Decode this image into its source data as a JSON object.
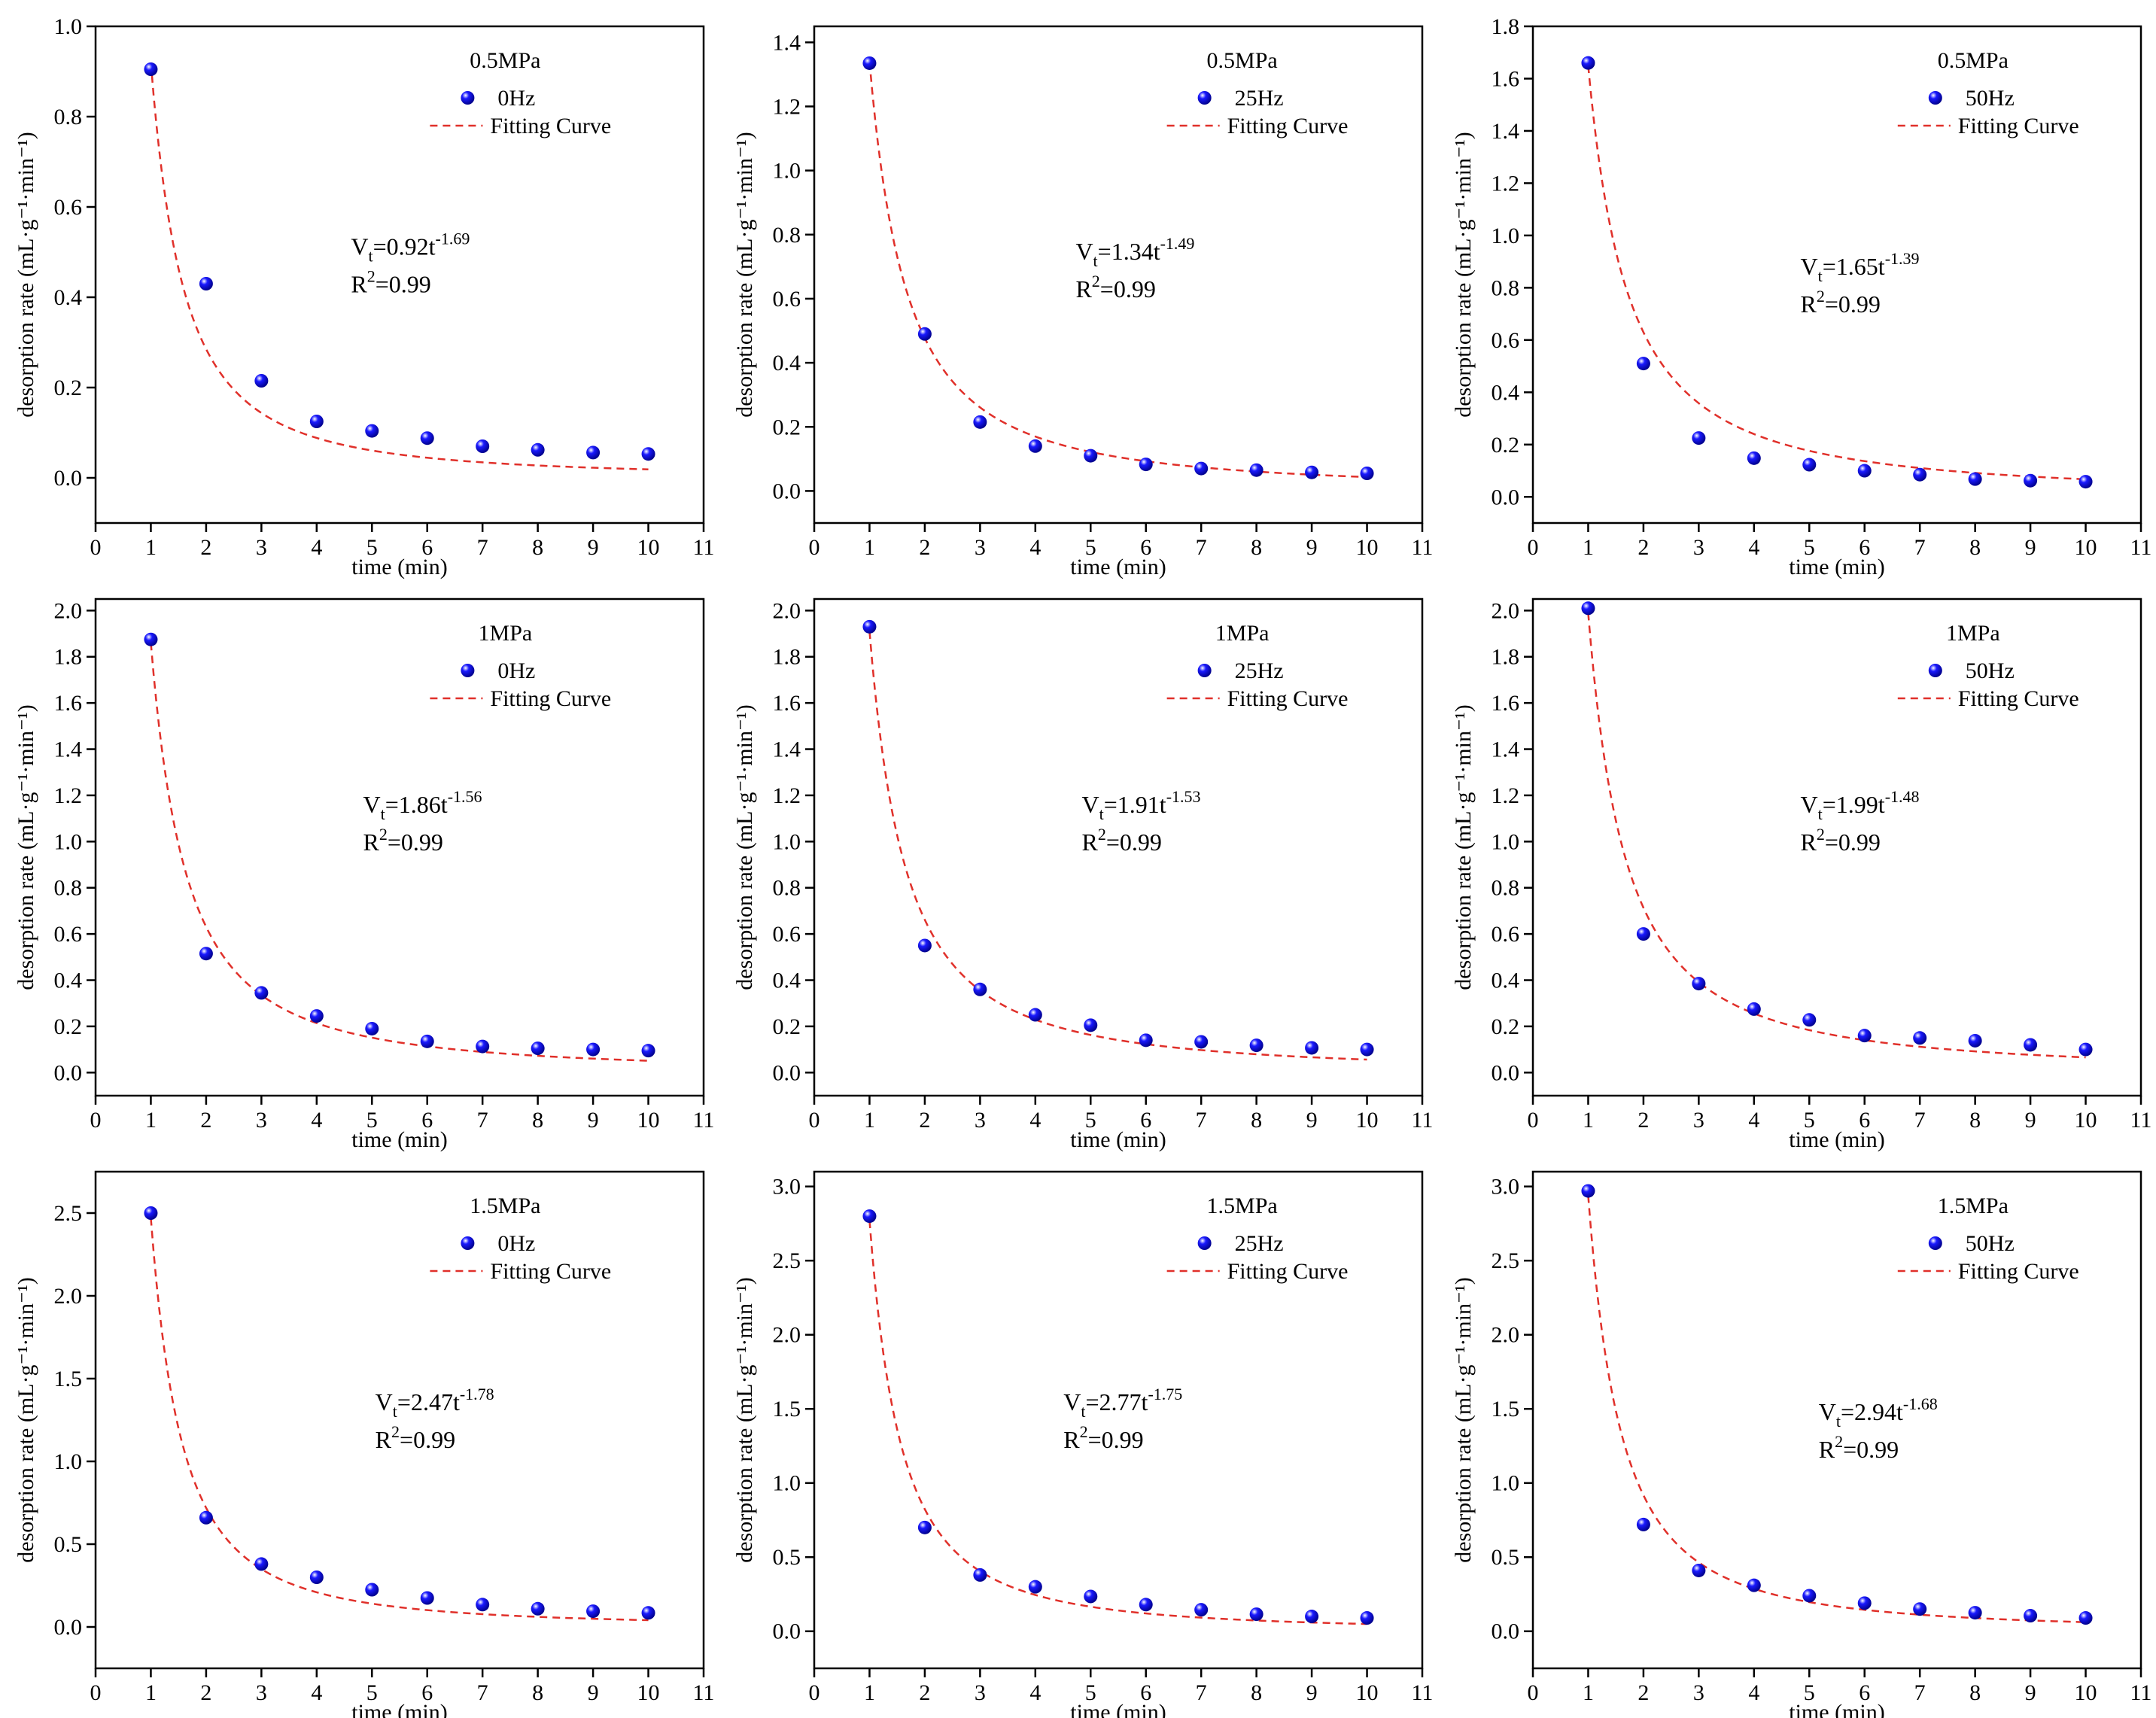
{
  "chart_data": [
    {
      "type": "scatter",
      "xlabel": "time (min)",
      "ylabel": "desorption rate (mL·g⁻¹·min⁻¹)",
      "xlim": [
        0,
        11
      ],
      "ylim": [
        -0.1,
        1.0
      ],
      "xticks": [
        0,
        1,
        2,
        3,
        4,
        5,
        6,
        7,
        8,
        9,
        10,
        11
      ],
      "yticks": [
        0.0,
        0.2,
        0.4,
        0.6,
        0.8,
        1.0
      ],
      "yticklabels": [
        "0.0",
        "0.2",
        "0.4",
        "0.6",
        "0.8",
        "1.0"
      ],
      "legend": {
        "position": "top-right",
        "title": "0.5MPa",
        "series_label": "0Hz",
        "fit_label": "Fitting Curve"
      },
      "series": [
        {
          "name": "0Hz",
          "x": [
            1,
            2,
            3,
            4,
            5,
            6,
            7,
            8,
            9,
            10
          ],
          "y": [
            0.905,
            0.43,
            0.215,
            0.125,
            0.104,
            0.088,
            0.07,
            0.062,
            0.056,
            0.053
          ]
        }
      ],
      "fit": {
        "a": 0.92,
        "b": 1.69
      },
      "equation": {
        "prefix": "V",
        "sub": "t",
        "mid": "=0.92t",
        "exp": "-1.69"
      },
      "r2": {
        "prefix": "R",
        "sup": "2",
        "suffix": "=0.99"
      },
      "grid": false
    },
    {
      "type": "scatter",
      "xlabel": "time (min)",
      "ylabel": "desorption rate (mL·g⁻¹·min⁻¹)",
      "xlim": [
        0,
        11
      ],
      "ylim": [
        -0.1,
        1.45
      ],
      "xticks": [
        0,
        1,
        2,
        3,
        4,
        5,
        6,
        7,
        8,
        9,
        10,
        11
      ],
      "yticks": [
        0.0,
        0.2,
        0.4,
        0.6,
        0.8,
        1.0,
        1.2,
        1.4
      ],
      "yticklabels": [
        "0.0",
        "0.2",
        "0.4",
        "0.6",
        "0.8",
        "1.0",
        "1.2",
        "1.4"
      ],
      "legend": {
        "position": "top-right",
        "title": "0.5MPa",
        "series_label": "25Hz",
        "fit_label": "Fitting Curve"
      },
      "series": [
        {
          "name": "25Hz",
          "x": [
            1,
            2,
            3,
            4,
            5,
            6,
            7,
            8,
            9,
            10
          ],
          "y": [
            1.335,
            0.49,
            0.215,
            0.14,
            0.11,
            0.083,
            0.07,
            0.065,
            0.058,
            0.055
          ]
        }
      ],
      "fit": {
        "a": 1.34,
        "b": 1.49
      },
      "equation": {
        "prefix": "V",
        "sub": "t",
        "mid": "=1.34t",
        "exp": "-1.49"
      },
      "r2": {
        "prefix": "R",
        "sup": "2",
        "suffix": "=0.99"
      },
      "grid": false
    },
    {
      "type": "scatter",
      "xlabel": "time (min)",
      "ylabel": "desorption rate (mL·g⁻¹·min⁻¹)",
      "xlim": [
        0,
        11
      ],
      "ylim": [
        -0.1,
        1.8
      ],
      "xticks": [
        0,
        1,
        2,
        3,
        4,
        5,
        6,
        7,
        8,
        9,
        10,
        11
      ],
      "yticks": [
        0.0,
        0.2,
        0.4,
        0.6,
        0.8,
        1.0,
        1.2,
        1.4,
        1.6,
        1.8
      ],
      "yticklabels": [
        "0.0",
        "0.2",
        "0.4",
        "0.6",
        "0.8",
        "1.0",
        "1.2",
        "1.4",
        "1.6",
        "1.8"
      ],
      "legend": {
        "position": "top-right",
        "title": "0.5MPa",
        "series_label": "50Hz",
        "fit_label": "Fitting Curve"
      },
      "series": [
        {
          "name": "50Hz",
          "x": [
            1,
            2,
            3,
            4,
            5,
            6,
            7,
            8,
            9,
            10
          ],
          "y": [
            1.66,
            0.51,
            0.225,
            0.148,
            0.123,
            0.1,
            0.085,
            0.068,
            0.062,
            0.058
          ]
        }
      ],
      "fit": {
        "a": 1.65,
        "b": 1.39
      },
      "equation": {
        "prefix": "V",
        "sub": "t",
        "mid": "=1.65t",
        "exp": "-1.39"
      },
      "r2": {
        "prefix": "R",
        "sup": "2",
        "suffix": "=0.99"
      },
      "grid": false
    },
    {
      "type": "scatter",
      "xlabel": "time (min)",
      "ylabel": "desorption rate (mL·g⁻¹·min⁻¹)",
      "xlim": [
        0,
        11
      ],
      "ylim": [
        -0.1,
        2.05
      ],
      "xticks": [
        0,
        1,
        2,
        3,
        4,
        5,
        6,
        7,
        8,
        9,
        10,
        11
      ],
      "yticks": [
        0.0,
        0.2,
        0.4,
        0.6,
        0.8,
        1.0,
        1.2,
        1.4,
        1.6,
        1.8,
        2.0
      ],
      "yticklabels": [
        "0.0",
        "0.2",
        "0.4",
        "0.6",
        "0.8",
        "1.0",
        "1.2",
        "1.4",
        "1.6",
        "1.8",
        "2.0"
      ],
      "legend": {
        "position": "top-right",
        "title": "1MPa",
        "series_label": "0Hz",
        "fit_label": "Fitting Curve"
      },
      "series": [
        {
          "name": "0Hz",
          "x": [
            1,
            2,
            3,
            4,
            5,
            6,
            7,
            8,
            9,
            10
          ],
          "y": [
            1.875,
            0.515,
            0.345,
            0.245,
            0.19,
            0.135,
            0.113,
            0.105,
            0.1,
            0.095
          ]
        }
      ],
      "fit": {
        "a": 1.86,
        "b": 1.56
      },
      "equation": {
        "prefix": "V",
        "sub": "t",
        "mid": "=1.86t",
        "exp": "-1.56"
      },
      "r2": {
        "prefix": "R",
        "sup": "2",
        "suffix": "=0.99"
      },
      "grid": false
    },
    {
      "type": "scatter",
      "xlabel": "time (min)",
      "ylabel": "desorption rate (mL·g⁻¹·min⁻¹)",
      "xlim": [
        0,
        11
      ],
      "ylim": [
        -0.1,
        2.05
      ],
      "xticks": [
        0,
        1,
        2,
        3,
        4,
        5,
        6,
        7,
        8,
        9,
        10,
        11
      ],
      "yticks": [
        0.0,
        0.2,
        0.4,
        0.6,
        0.8,
        1.0,
        1.2,
        1.4,
        1.6,
        1.8,
        2.0
      ],
      "yticklabels": [
        "0.0",
        "0.2",
        "0.4",
        "0.6",
        "0.8",
        "1.0",
        "1.2",
        "1.4",
        "1.6",
        "1.8",
        "2.0"
      ],
      "legend": {
        "position": "top-right",
        "title": "1MPa",
        "series_label": "25Hz",
        "fit_label": "Fitting Curve"
      },
      "series": [
        {
          "name": "25Hz",
          "x": [
            1,
            2,
            3,
            4,
            5,
            6,
            7,
            8,
            9,
            10
          ],
          "y": [
            1.93,
            0.55,
            0.36,
            0.25,
            0.205,
            0.14,
            0.133,
            0.118,
            0.107,
            0.1
          ]
        }
      ],
      "fit": {
        "a": 1.91,
        "b": 1.53
      },
      "equation": {
        "prefix": "V",
        "sub": "t",
        "mid": "=1.91t",
        "exp": "-1.53"
      },
      "r2": {
        "prefix": "R",
        "sup": "2",
        "suffix": "=0.99"
      },
      "grid": false
    },
    {
      "type": "scatter",
      "xlabel": "time (min)",
      "ylabel": "desorption rate (mL·g⁻¹·min⁻¹)",
      "xlim": [
        0,
        11
      ],
      "ylim": [
        -0.1,
        2.05
      ],
      "xticks": [
        0,
        1,
        2,
        3,
        4,
        5,
        6,
        7,
        8,
        9,
        10,
        11
      ],
      "yticks": [
        0.0,
        0.2,
        0.4,
        0.6,
        0.8,
        1.0,
        1.2,
        1.4,
        1.6,
        1.8,
        2.0
      ],
      "yticklabels": [
        "0.0",
        "0.2",
        "0.4",
        "0.6",
        "0.8",
        "1.0",
        "1.2",
        "1.4",
        "1.6",
        "1.8",
        "2.0"
      ],
      "legend": {
        "position": "top-right",
        "title": "1MPa",
        "series_label": "50Hz",
        "fit_label": "Fitting Curve"
      },
      "series": [
        {
          "name": "50Hz",
          "x": [
            1,
            2,
            3,
            4,
            5,
            6,
            7,
            8,
            9,
            10
          ],
          "y": [
            2.01,
            0.6,
            0.385,
            0.275,
            0.228,
            0.16,
            0.15,
            0.138,
            0.12,
            0.1
          ]
        }
      ],
      "fit": {
        "a": 1.99,
        "b": 1.48
      },
      "equation": {
        "prefix": "V",
        "sub": "t",
        "mid": "=1.99t",
        "exp": "-1.48"
      },
      "r2": {
        "prefix": "R",
        "sup": "2",
        "suffix": "=0.99"
      },
      "grid": false
    },
    {
      "type": "scatter",
      "xlabel": "time (min)",
      "ylabel": "desorption rate (mL·g⁻¹·min⁻¹)",
      "xlim": [
        0,
        11
      ],
      "ylim": [
        -0.25,
        2.75
      ],
      "xticks": [
        0,
        1,
        2,
        3,
        4,
        5,
        6,
        7,
        8,
        9,
        10,
        11
      ],
      "yticks": [
        0.0,
        0.5,
        1.0,
        1.5,
        2.0,
        2.5
      ],
      "yticklabels": [
        "0.0",
        "0.5",
        "1.0",
        "1.5",
        "2.0",
        "2.5"
      ],
      "legend": {
        "position": "top-right",
        "title": "1.5MPa",
        "series_label": "0Hz",
        "fit_label": "Fitting Curve"
      },
      "series": [
        {
          "name": "0Hz",
          "x": [
            1,
            2,
            3,
            4,
            5,
            6,
            7,
            8,
            9,
            10
          ],
          "y": [
            2.5,
            0.66,
            0.38,
            0.3,
            0.225,
            0.175,
            0.135,
            0.11,
            0.095,
            0.085
          ]
        }
      ],
      "fit": {
        "a": 2.47,
        "b": 1.78
      },
      "equation": {
        "prefix": "V",
        "sub": "t",
        "mid": "=2.47t",
        "exp": "-1.78"
      },
      "r2": {
        "prefix": "R",
        "sup": "2",
        "suffix": "=0.99"
      },
      "grid": false
    },
    {
      "type": "scatter",
      "xlabel": "time (min)",
      "ylabel": "desorption rate (mL·g⁻¹·min⁻¹)",
      "xlim": [
        0,
        11
      ],
      "ylim": [
        -0.25,
        3.1
      ],
      "xticks": [
        0,
        1,
        2,
        3,
        4,
        5,
        6,
        7,
        8,
        9,
        10,
        11
      ],
      "yticks": [
        0.0,
        0.5,
        1.0,
        1.5,
        2.0,
        2.5,
        3.0
      ],
      "yticklabels": [
        "0.0",
        "0.5",
        "1.0",
        "1.5",
        "2.0",
        "2.5",
        "3.0"
      ],
      "legend": {
        "position": "top-right",
        "title": "1.5MPa",
        "series_label": "25Hz",
        "fit_label": "Fitting Curve"
      },
      "series": [
        {
          "name": "25Hz",
          "x": [
            1,
            2,
            3,
            4,
            5,
            6,
            7,
            8,
            9,
            10
          ],
          "y": [
            2.8,
            0.7,
            0.38,
            0.3,
            0.235,
            0.18,
            0.145,
            0.115,
            0.1,
            0.09
          ]
        }
      ],
      "fit": {
        "a": 2.77,
        "b": 1.75
      },
      "equation": {
        "prefix": "V",
        "sub": "t",
        "mid": "=2.77t",
        "exp": "-1.75"
      },
      "r2": {
        "prefix": "R",
        "sup": "2",
        "suffix": "=0.99"
      },
      "grid": false
    },
    {
      "type": "scatter",
      "xlabel": "time (min)",
      "ylabel": "desorption rate (mL·g⁻¹·min⁻¹)",
      "xlim": [
        0,
        11
      ],
      "ylim": [
        -0.25,
        3.1
      ],
      "xticks": [
        0,
        1,
        2,
        3,
        4,
        5,
        6,
        7,
        8,
        9,
        10,
        11
      ],
      "yticks": [
        0.0,
        0.5,
        1.0,
        1.5,
        2.0,
        2.5,
        3.0
      ],
      "yticklabels": [
        "0.0",
        "0.5",
        "1.0",
        "1.5",
        "2.0",
        "2.5",
        "3.0"
      ],
      "legend": {
        "position": "top-right",
        "title": "1.5MPa",
        "series_label": "50Hz",
        "fit_label": "Fitting Curve"
      },
      "series": [
        {
          "name": "50Hz",
          "x": [
            1,
            2,
            3,
            4,
            5,
            6,
            7,
            8,
            9,
            10
          ],
          "y": [
            2.97,
            0.72,
            0.41,
            0.31,
            0.24,
            0.19,
            0.15,
            0.125,
            0.105,
            0.09
          ]
        }
      ],
      "fit": {
        "a": 2.94,
        "b": 1.68
      },
      "equation": {
        "prefix": "V",
        "sub": "t",
        "mid": "=2.94t",
        "exp": "-1.68"
      },
      "r2": {
        "prefix": "R",
        "sup": "2",
        "suffix": "=0.99"
      },
      "grid": false
    }
  ],
  "colors": {
    "marker": "#1a1aff",
    "marker_dark": "#00008a",
    "fit": "#e0302a",
    "axis": "#000000"
  }
}
